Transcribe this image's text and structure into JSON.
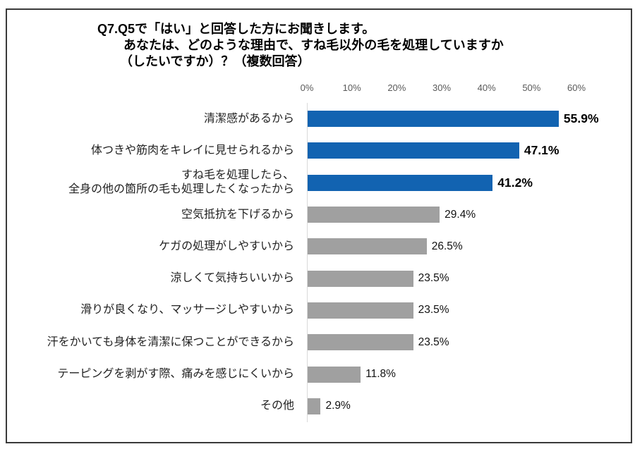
{
  "title": {
    "line1": "Q7.Q5で「はい」と回答した方にお聞きします。",
    "line2": "あなたは、どのような理由で、すね毛以外の毛を処理していますか",
    "line3": "（したいですか）？（複数回答）"
  },
  "axis": {
    "tick_labels": [
      "0%",
      "10%",
      "20%",
      "30%",
      "40%",
      "50%",
      "60%"
    ],
    "min": 0,
    "max": 60
  },
  "colors": {
    "bar_highlight": "#1263B1",
    "bar_default": "#A0A0A0",
    "axis_line": "#D9D9D9",
    "tick_text": "#595959"
  },
  "chart_data": {
    "type": "bar",
    "orientation": "horizontal",
    "title": "Q7.Q5で「はい」と回答した方にお聞きします。あなたは、どのような理由で、すね毛以外の毛を処理していますか（したいですか）？（複数回答）",
    "xlabel": "",
    "ylabel": "",
    "xlim": [
      0,
      60
    ],
    "grid": false,
    "legend": false,
    "categories": [
      "清潔感があるから",
      "体つきや筋肉をキレイに見せられるから",
      "すね毛を処理したら、\n全身の他の箇所の毛も処理したくなったから",
      "空気抵抗を下げるから",
      "ケガの処理がしやすいから",
      "涼しくて気持ちいいから",
      "滑りが良くなり、マッサージしやすいから",
      "汗をかいても身体を清潔に保つことができるから",
      "テーピングを剥がす際、痛みを感じにくいから",
      "その他"
    ],
    "values": [
      55.9,
      47.1,
      41.2,
      29.4,
      26.5,
      23.5,
      23.5,
      23.5,
      11.8,
      2.9
    ],
    "value_labels": [
      "55.9%",
      "47.1%",
      "41.2%",
      "29.4%",
      "26.5%",
      "23.5%",
      "23.5%",
      "23.5%",
      "11.8%",
      "2.9%"
    ],
    "highlighted": [
      true,
      true,
      true,
      false,
      false,
      false,
      false,
      false,
      false,
      false
    ]
  }
}
